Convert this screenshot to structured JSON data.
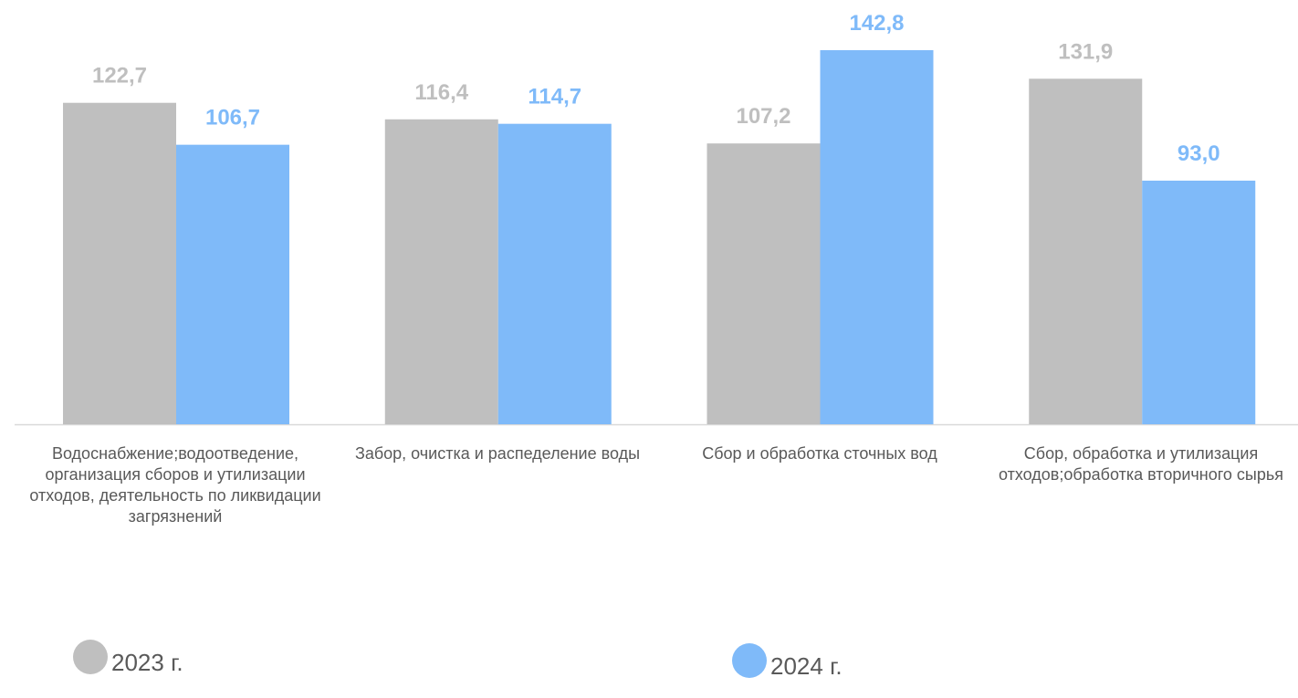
{
  "chart_data": {
    "type": "bar",
    "categories": [
      "Водоснабжение;водоотведение, организация сборов и утилизации отходов, деятельность по ликвидации загрязнений",
      "Забор, очистка и распеделение воды",
      "Сбор и обработка сточных вод",
      "Сбор, обработка и утилизация отходов;обработка вторичного сырья"
    ],
    "series": [
      {
        "name": "2023 г.",
        "values": [
          122.7,
          116.4,
          107.2,
          131.9
        ],
        "labels": [
          "122,7",
          "116,4",
          "107,2",
          "131,9"
        ],
        "color": "#bfbfbf",
        "label_color": "#bfbfbf"
      },
      {
        "name": "2024 г.",
        "values": [
          106.7,
          114.7,
          142.8,
          93.0
        ],
        "labels": [
          "106,7",
          "114,7",
          "142,8",
          "93,0"
        ],
        "color": "#7fbaf9",
        "label_color": "#7fbaf9"
      }
    ],
    "ylim": [
      0,
      150
    ],
    "grid": false,
    "legend": "bottom"
  }
}
